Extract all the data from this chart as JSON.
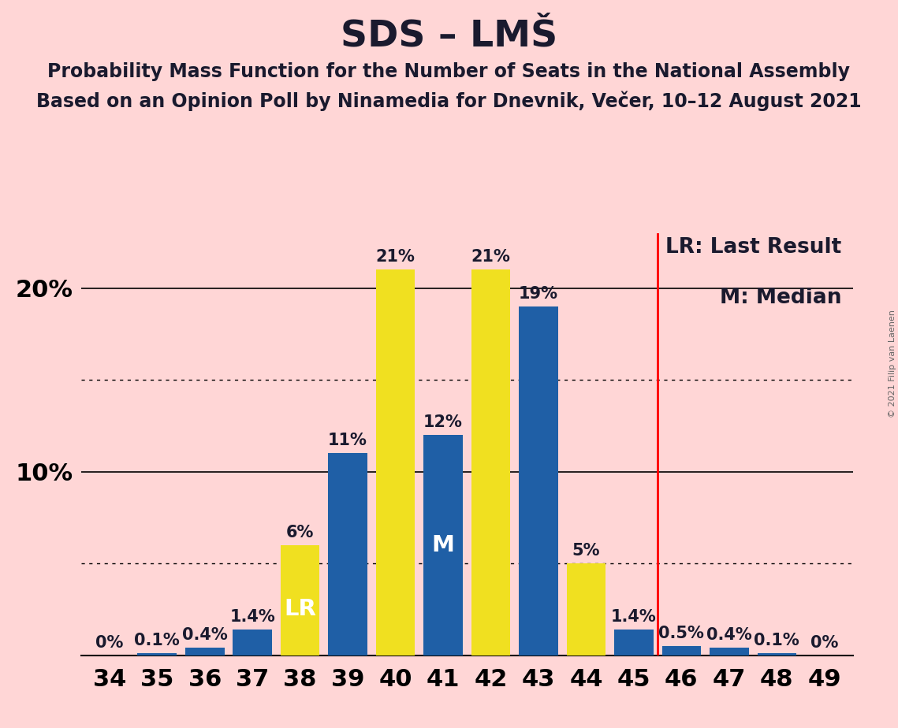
{
  "title": "SDS – LMŠ",
  "subtitle1": "Probability Mass Function for the Number of Seats in the National Assembly",
  "subtitle2": "Based on an Opinion Poll by Ninamedia for Dnevnik, Večer, 10–12 August 2021",
  "copyright": "© 2021 Filip van Laenen",
  "seats": [
    34,
    35,
    36,
    37,
    38,
    39,
    40,
    41,
    42,
    43,
    44,
    45,
    46,
    47,
    48,
    49
  ],
  "blue_values": [
    0.0,
    0.1,
    0.4,
    1.4,
    0.0,
    11.0,
    0.0,
    12.0,
    0.0,
    19.0,
    0.0,
    1.4,
    0.5,
    0.4,
    0.1,
    0.0
  ],
  "yellow_values": [
    0.0,
    0.0,
    0.0,
    0.0,
    6.0,
    0.0,
    21.0,
    0.0,
    21.0,
    0.0,
    5.0,
    0.0,
    0.0,
    0.0,
    0.0,
    0.0
  ],
  "blue_color": "#1f5fa6",
  "yellow_color": "#f0e020",
  "background_color": "#ffd6d6",
  "lr_seat": 38,
  "median_seat": 41,
  "ylim_max": 23,
  "dotted_lines": [
    5,
    15
  ],
  "solid_lines": [
    10,
    20
  ],
  "ytick_positions": [
    10,
    20
  ],
  "ytick_labels": [
    "10%",
    "20%"
  ],
  "lr_label": "LR",
  "median_label": "M",
  "legend_lr": "LR: Last Result",
  "legend_m": "M: Median",
  "title_fontsize": 34,
  "subtitle_fontsize": 17,
  "bar_label_fontsize": 15,
  "axis_tick_fontsize": 22,
  "legend_fontsize": 19,
  "copyright_fontsize": 8,
  "text_color": "#1a1a2e",
  "vline_after_seat": 45
}
